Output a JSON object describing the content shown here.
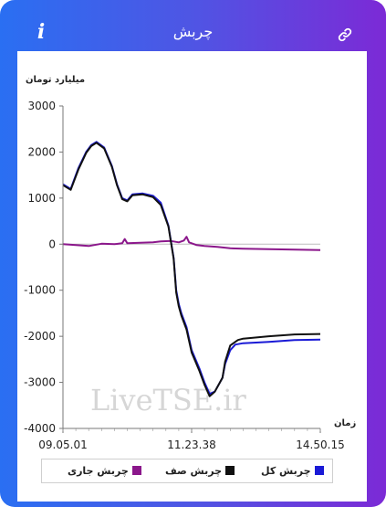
{
  "header": {
    "title": "چربش",
    "info_icon": "i",
    "link_icon": "link-icon"
  },
  "chart_data": {
    "type": "line",
    "ylabel": "میلیارد تومان",
    "xlabel": "زمان",
    "ylim": [
      -4000,
      3000
    ],
    "yticks": [
      -4000,
      -3000,
      -2000,
      -1000,
      0,
      1000,
      2000,
      3000
    ],
    "x_tick_labels": [
      "09.05.01",
      "11.23.38",
      "14.50.15"
    ],
    "watermark": "LiveTSE.ir",
    "legend": {
      "position": "bottom"
    },
    "series": [
      {
        "name": "چربش کل",
        "color": "#1a1ad6",
        "x": [
          0,
          0.03,
          0.06,
          0.09,
          0.11,
          0.13,
          0.16,
          0.19,
          0.21,
          0.23,
          0.25,
          0.27,
          0.31,
          0.35,
          0.38,
          0.41,
          0.43,
          0.44,
          0.45,
          0.46,
          0.48,
          0.5,
          0.53,
          0.55,
          0.57,
          0.59,
          0.61,
          0.62,
          0.63,
          0.65,
          0.67,
          0.68,
          0.7,
          0.8,
          0.9,
          1.0
        ],
        "y": [
          1300,
          1200,
          1650,
          2000,
          2150,
          2220,
          2100,
          1700,
          1300,
          1000,
          950,
          1080,
          1100,
          1050,
          900,
          400,
          -300,
          -1000,
          -1300,
          -1500,
          -1800,
          -2300,
          -2700,
          -3000,
          -3250,
          -3200,
          -3000,
          -2900,
          -2600,
          -2300,
          -2180,
          -2170,
          -2150,
          -2120,
          -2080,
          -2070
        ]
      },
      {
        "name": "چربش صف",
        "color": "#111111",
        "x": [
          0,
          0.03,
          0.06,
          0.09,
          0.11,
          0.13,
          0.16,
          0.19,
          0.21,
          0.23,
          0.25,
          0.27,
          0.31,
          0.35,
          0.38,
          0.41,
          0.43,
          0.44,
          0.45,
          0.46,
          0.48,
          0.5,
          0.53,
          0.55,
          0.57,
          0.59,
          0.61,
          0.62,
          0.63,
          0.65,
          0.67,
          0.68,
          0.7,
          0.8,
          0.9,
          1.0
        ],
        "y": [
          1280,
          1180,
          1620,
          1980,
          2130,
          2200,
          2080,
          1680,
          1280,
          980,
          930,
          1060,
          1080,
          1020,
          850,
          380,
          -320,
          -1050,
          -1350,
          -1550,
          -1850,
          -2350,
          -2750,
          -3050,
          -3300,
          -3200,
          -3000,
          -2900,
          -2550,
          -2200,
          -2120,
          -2080,
          -2050,
          -2000,
          -1960,
          -1950
        ]
      },
      {
        "name": "چربش جاری",
        "color": "#8b178b",
        "x": [
          0,
          0.05,
          0.1,
          0.15,
          0.2,
          0.23,
          0.24,
          0.25,
          0.3,
          0.35,
          0.38,
          0.42,
          0.45,
          0.47,
          0.48,
          0.49,
          0.52,
          0.55,
          0.6,
          0.65,
          0.7,
          0.8,
          0.9,
          1.0
        ],
        "y": [
          0,
          -20,
          -40,
          10,
          0,
          20,
          110,
          20,
          30,
          40,
          60,
          70,
          40,
          80,
          160,
          40,
          -20,
          -40,
          -60,
          -90,
          -100,
          -110,
          -120,
          -130
        ]
      }
    ]
  }
}
